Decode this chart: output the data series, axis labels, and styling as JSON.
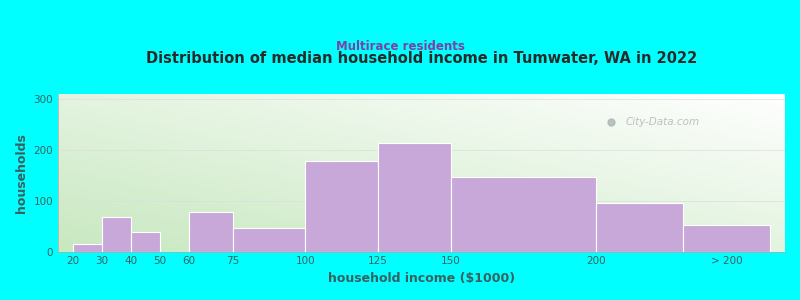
{
  "title": "Distribution of median household income in Tumwater, WA in 2022",
  "subtitle": "Multirace residents",
  "xlabel": "household income ($1000)",
  "ylabel": "households",
  "bar_values": [
    15,
    68,
    38,
    0,
    77,
    46,
    178,
    213,
    146,
    95,
    52
  ],
  "bar_color": "#c8a8d8",
  "bg_outer": "#00ffff",
  "bg_grad_topleft": "#c8e8c0",
  "bg_grad_bottomright": "#ffffff",
  "title_color": "#2a2a2a",
  "subtitle_color": "#8040a0",
  "axis_label_color": "#3a6060",
  "tick_color": "#3a6060",
  "watermark_text": "City-Data.com",
  "watermark_color": "#b0b8b8",
  "ylim": [
    0,
    310
  ],
  "yticks": [
    0,
    100,
    200,
    300
  ],
  "figsize": [
    8.0,
    3.0
  ],
  "dpi": 100,
  "x_positions": [
    20,
    30,
    40,
    50,
    60,
    75,
    100,
    125,
    150,
    200,
    230
  ],
  "bar_widths": [
    10,
    10,
    10,
    10,
    15,
    25,
    25,
    25,
    50,
    30,
    30
  ],
  "tick_positions": [
    20,
    30,
    40,
    50,
    60,
    75,
    100,
    125,
    150,
    200,
    245
  ],
  "tick_labels": [
    "20",
    "30",
    "40",
    "50",
    "60",
    "75",
    "100",
    "125",
    "150",
    "200",
    "> 200"
  ],
  "xlim": [
    15,
    265
  ]
}
